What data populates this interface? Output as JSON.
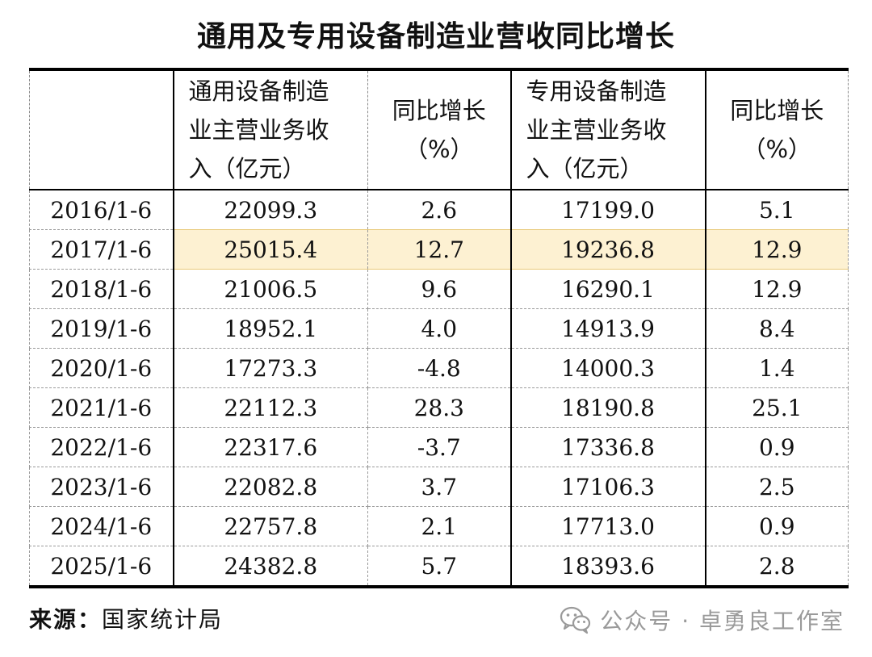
{
  "title": "通用及专用设备制造业营收同比增长",
  "table": {
    "headers": [
      {
        "lines": [
          ""
        ]
      },
      {
        "lines": [
          "通用设备制造",
          "业主营业务收",
          "入（亿元）"
        ]
      },
      {
        "lines": [
          "同比增长",
          "（%）"
        ]
      },
      {
        "lines": [
          "专用设备制造",
          "业主营业务收",
          "入（亿元）"
        ]
      },
      {
        "lines": [
          "同比增长",
          "（%）"
        ]
      }
    ],
    "rows": [
      [
        "2016/1-6",
        "22099.3",
        "2.6",
        "17199.0",
        "5.1"
      ],
      [
        "2017/1-6",
        "25015.4",
        "12.7",
        "19236.8",
        "12.9"
      ],
      [
        "2018/1-6",
        "21006.5",
        "9.6",
        "16290.1",
        "12.9"
      ],
      [
        "2019/1-6",
        "18952.1",
        "4.0",
        "14913.9",
        "8.4"
      ],
      [
        "2020/1-6",
        "17273.3",
        "-4.8",
        "14000.3",
        "1.4"
      ],
      [
        "2021/1-6",
        "22112.3",
        "28.3",
        "18190.8",
        "25.1"
      ],
      [
        "2022/1-6",
        "22317.6",
        "-3.7",
        "17336.8",
        "0.9"
      ],
      [
        "2023/1-6",
        "22082.8",
        "3.7",
        "17106.3",
        "2.5"
      ],
      [
        "2024/1-6",
        "22757.8",
        "2.1",
        "17713.0",
        "0.9"
      ],
      [
        "2025/1-6",
        "24382.8",
        "5.7",
        "18393.6",
        "2.8"
      ]
    ],
    "highlight_row_index": 1,
    "highlight_color": "#fdf1d2"
  },
  "footer": {
    "source_label": "来源：",
    "source_value": "国家统计局"
  },
  "watermark": {
    "icon": "wechat-icon",
    "text": "公众号 · 卓勇良工作室"
  }
}
